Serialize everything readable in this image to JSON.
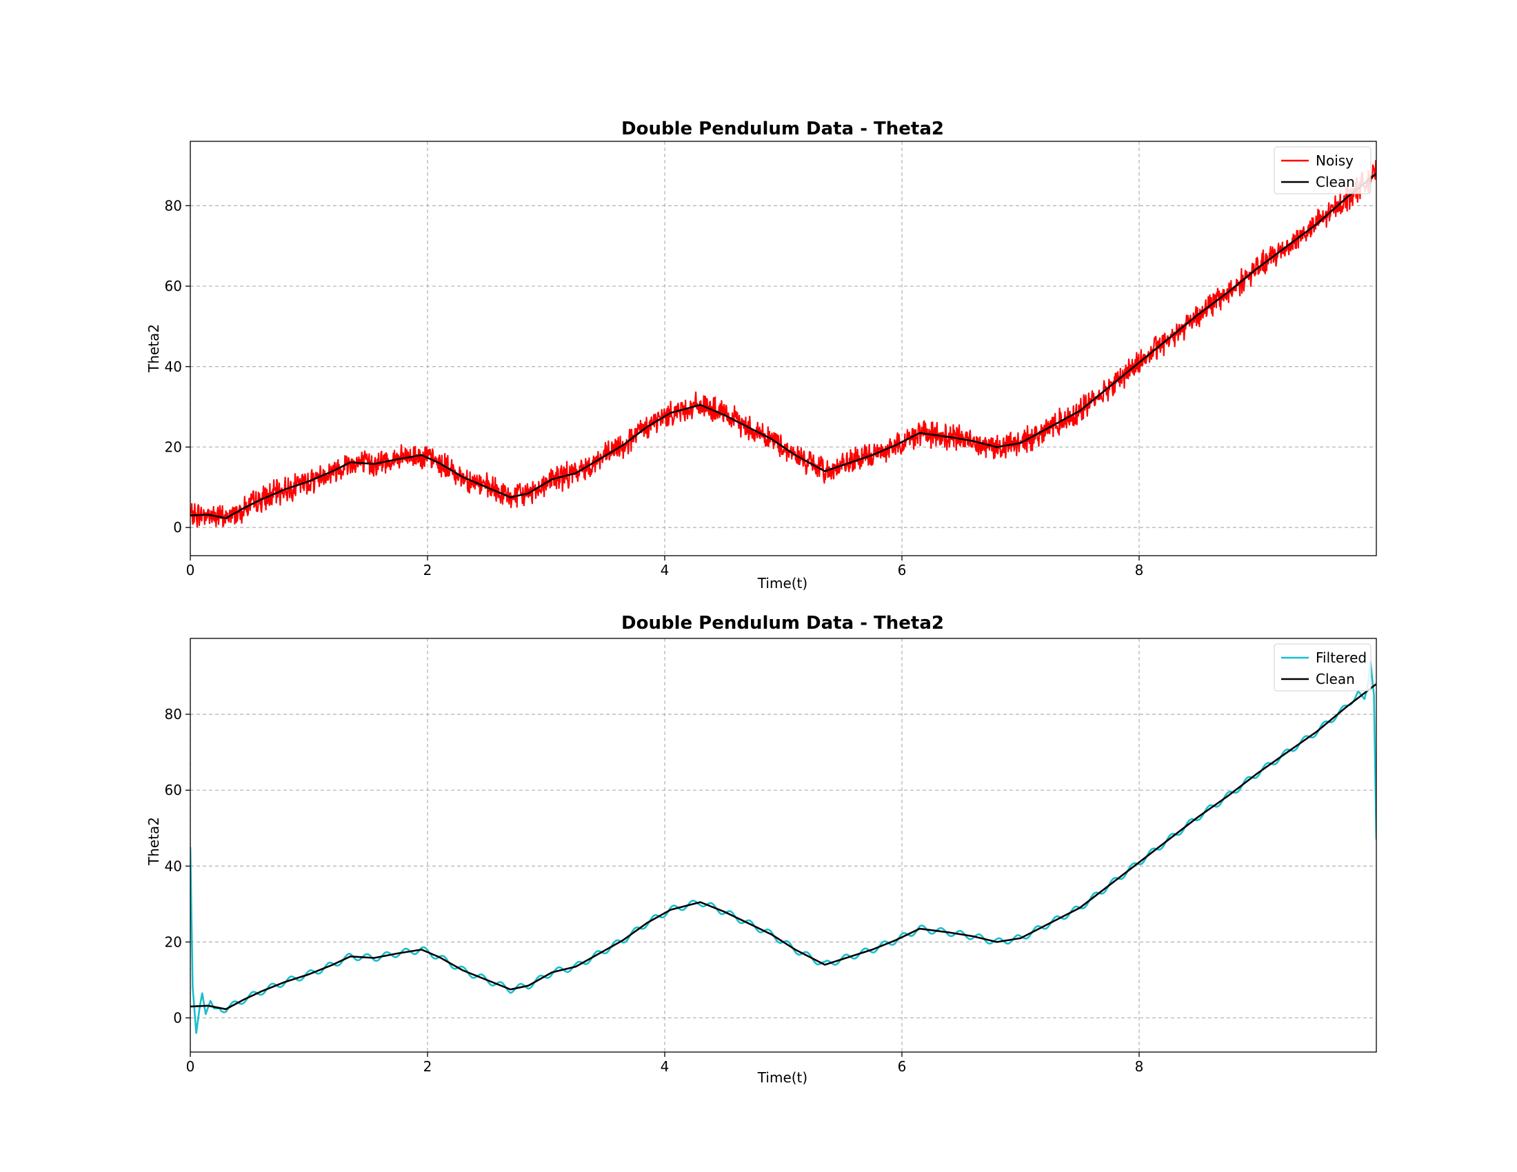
{
  "chart_data": [
    {
      "type": "line",
      "title": "Double Pendulum Data - Theta2",
      "xlabel": "Time(t)",
      "ylabel": "Theta2",
      "xlim": [
        0,
        10
      ],
      "ylim": [
        -7,
        96
      ],
      "xticks": [
        0,
        2,
        4,
        6,
        8
      ],
      "yticks": [
        0,
        20,
        40,
        60,
        80
      ],
      "grid": true,
      "legend_position": "top-right",
      "series": [
        {
          "name": "Noisy",
          "color": "#ff0000",
          "noise_amplitude": 2.3,
          "x": [
            0,
            0.15,
            0.3,
            0.45,
            0.6,
            0.8,
            1.0,
            1.2,
            1.35,
            1.55,
            1.75,
            1.95,
            2.1,
            2.3,
            2.5,
            2.7,
            2.85,
            3.05,
            3.25,
            3.45,
            3.65,
            3.85,
            4.05,
            4.3,
            4.5,
            4.7,
            4.9,
            5.1,
            5.35,
            5.55,
            5.75,
            5.95,
            6.15,
            6.4,
            6.6,
            6.8,
            7.0,
            7.25,
            7.5,
            7.75,
            8.0,
            8.25,
            8.5,
            8.75,
            9.0,
            9.25,
            9.5,
            9.75,
            10.0
          ],
          "y": [
            3,
            3.2,
            2.3,
            4.8,
            7,
            9.5,
            11.5,
            14,
            16.2,
            15.8,
            17,
            18,
            16,
            12.5,
            10,
            7.5,
            8.5,
            12,
            13.5,
            17,
            20.5,
            25,
            28.5,
            30.5,
            28,
            25,
            22,
            18,
            14,
            16,
            18,
            20.5,
            23.5,
            22.5,
            21.5,
            20,
            21,
            25,
            29,
            35,
            41,
            47,
            53,
            58.5,
            64.5,
            70,
            75.5,
            82,
            88
          ]
        },
        {
          "name": "Clean",
          "color": "#000000",
          "x": [
            0,
            0.15,
            0.3,
            0.45,
            0.6,
            0.8,
            1.0,
            1.2,
            1.35,
            1.55,
            1.75,
            1.95,
            2.1,
            2.3,
            2.5,
            2.7,
            2.85,
            3.05,
            3.25,
            3.45,
            3.65,
            3.85,
            4.05,
            4.3,
            4.5,
            4.7,
            4.9,
            5.1,
            5.35,
            5.55,
            5.75,
            5.95,
            6.15,
            6.4,
            6.6,
            6.8,
            7.0,
            7.25,
            7.5,
            7.75,
            8.0,
            8.25,
            8.5,
            8.75,
            9.0,
            9.25,
            9.5,
            9.75,
            10.0
          ],
          "y": [
            3,
            3.2,
            2.3,
            4.8,
            7,
            9.5,
            11.5,
            14,
            16.2,
            15.8,
            17,
            18,
            16,
            12.5,
            10,
            7.5,
            8.5,
            12,
            13.5,
            17,
            20.5,
            25,
            28.5,
            30.5,
            28,
            25,
            22,
            18,
            14,
            16,
            18,
            20.5,
            23.5,
            22.5,
            21.5,
            20,
            21,
            25,
            29,
            35,
            41,
            47,
            53,
            58.5,
            64.5,
            70,
            75.5,
            82,
            88
          ]
        }
      ]
    },
    {
      "type": "line",
      "title": "Double Pendulum Data - Theta2",
      "xlabel": "Time(t)",
      "ylabel": "Theta2",
      "xlim": [
        0,
        10
      ],
      "ylim": [
        -9,
        100
      ],
      "xticks": [
        0,
        2,
        4,
        6,
        8
      ],
      "yticks": [
        0,
        20,
        40,
        60,
        80
      ],
      "grid": true,
      "legend_position": "top-right",
      "series": [
        {
          "name": "Filtered",
          "color": "#17becf",
          "ringing_amplitude": 0.9,
          "x": [
            0,
            0.02,
            0.05,
            0.08,
            0.1,
            0.13,
            0.17,
            0.2,
            0.25,
            0.3,
            0.45,
            0.6,
            0.8,
            1.0,
            1.2,
            1.35,
            1.55,
            1.75,
            1.95,
            2.1,
            2.3,
            2.5,
            2.7,
            2.85,
            3.05,
            3.25,
            3.45,
            3.65,
            3.85,
            4.05,
            4.3,
            4.5,
            4.7,
            4.9,
            5.1,
            5.35,
            5.55,
            5.75,
            5.95,
            6.15,
            6.4,
            6.6,
            6.8,
            7.0,
            7.25,
            7.5,
            7.75,
            8.0,
            8.25,
            8.5,
            8.75,
            9.0,
            9.25,
            9.5,
            9.75,
            9.85,
            9.9,
            9.93,
            9.95,
            9.98,
            10.0
          ],
          "y": [
            45,
            8,
            -4,
            3,
            6.5,
            1,
            4.5,
            2.5,
            2.5,
            2.3,
            4.8,
            7,
            9.5,
            11.5,
            14,
            16.2,
            15.8,
            17,
            18,
            16,
            12.5,
            10,
            7.5,
            8.5,
            12,
            13.5,
            17,
            20.5,
            25,
            28.5,
            30.5,
            28,
            25,
            22,
            18,
            14,
            16,
            18,
            20.5,
            23.5,
            22.5,
            21.5,
            20,
            21,
            25,
            29,
            35,
            41,
            47,
            53,
            58.5,
            64.5,
            70,
            75.5,
            82,
            86,
            84,
            88,
            94,
            85,
            47
          ]
        },
        {
          "name": "Clean",
          "color": "#000000",
          "x": [
            0,
            0.15,
            0.3,
            0.45,
            0.6,
            0.8,
            1.0,
            1.2,
            1.35,
            1.55,
            1.75,
            1.95,
            2.1,
            2.3,
            2.5,
            2.7,
            2.85,
            3.05,
            3.25,
            3.45,
            3.65,
            3.85,
            4.05,
            4.3,
            4.5,
            4.7,
            4.9,
            5.1,
            5.35,
            5.55,
            5.75,
            5.95,
            6.15,
            6.4,
            6.6,
            6.8,
            7.0,
            7.25,
            7.5,
            7.75,
            8.0,
            8.25,
            8.5,
            8.75,
            9.0,
            9.25,
            9.5,
            9.75,
            10.0
          ],
          "y": [
            3,
            3.2,
            2.3,
            4.8,
            7,
            9.5,
            11.5,
            14,
            16.2,
            15.8,
            17,
            18,
            16,
            12.5,
            10,
            7.5,
            8.5,
            12,
            13.5,
            17,
            20.5,
            25,
            28.5,
            30.5,
            28,
            25,
            22,
            18,
            14,
            16,
            18,
            20.5,
            23.5,
            22.5,
            21.5,
            20,
            21,
            25,
            29,
            35,
            41,
            47,
            53,
            58.5,
            64.5,
            70,
            75.5,
            82,
            88
          ]
        }
      ]
    }
  ]
}
